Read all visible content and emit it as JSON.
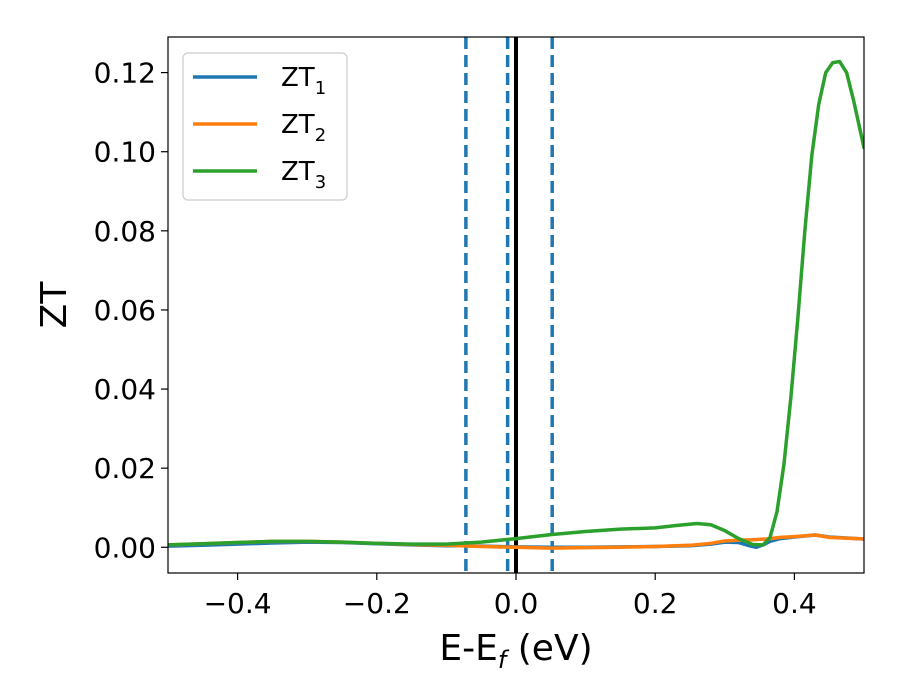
{
  "chart_data": {
    "type": "line",
    "xlabel": "E-E",
    "xlabel_sub": "f",
    "xlabel_unit": " (eV)",
    "ylabel": "ZT",
    "xlim": [
      -0.5,
      0.5
    ],
    "ylim": [
      -0.0065,
      0.129
    ],
    "xticks": [
      -0.4,
      -0.2,
      0.0,
      0.2,
      0.4
    ],
    "xtick_labels": [
      "−0.4",
      "−0.2",
      "0.0",
      "0.2",
      "0.4"
    ],
    "yticks": [
      0.0,
      0.02,
      0.04,
      0.06,
      0.08,
      0.1,
      0.12
    ],
    "ytick_labels": [
      "0.00",
      "0.02",
      "0.04",
      "0.06",
      "0.08",
      "0.10",
      "0.12"
    ],
    "legend_position": "top-left",
    "colors": {
      "ZT1": "#1f77b4",
      "ZT2": "#ff7f0e",
      "ZT3": "#2ca02c",
      "solid_vline": "#000000",
      "dashed_vline": "#1f77b4"
    },
    "vlines": [
      {
        "x": -0.072,
        "style": "dashed"
      },
      {
        "x": -0.012,
        "style": "dashed"
      },
      {
        "x": 0.0,
        "style": "solid"
      },
      {
        "x": 0.052,
        "style": "dashed"
      }
    ],
    "series": [
      {
        "name": "ZT",
        "sub": "1",
        "color": "#1f77b4",
        "x": [
          -0.5,
          -0.45,
          -0.4,
          -0.35,
          -0.3,
          -0.25,
          -0.2,
          -0.15,
          -0.1,
          -0.08,
          -0.05,
          0.0,
          0.05,
          0.1,
          0.15,
          0.2,
          0.25,
          0.28,
          0.3,
          0.32,
          0.335,
          0.345,
          0.355,
          0.365,
          0.38,
          0.4,
          0.43,
          0.45,
          0.5
        ],
        "y": [
          0.0003,
          0.0005,
          0.0008,
          0.0011,
          0.0013,
          0.0012,
          0.0009,
          0.0006,
          0.0004,
          0.0004,
          0.0003,
          0.0001,
          0.0,
          0.0,
          0.0001,
          0.0002,
          0.0004,
          0.0008,
          0.0013,
          0.0012,
          0.0004,
          0.0,
          0.0006,
          0.0015,
          0.0022,
          0.0026,
          0.0031,
          0.0026,
          0.0021
        ]
      },
      {
        "name": "ZT",
        "sub": "2",
        "color": "#ff7f0e",
        "x": [
          -0.5,
          -0.45,
          -0.4,
          -0.35,
          -0.3,
          -0.25,
          -0.2,
          -0.15,
          -0.1,
          -0.08,
          -0.05,
          0.0,
          0.05,
          0.1,
          0.15,
          0.2,
          0.25,
          0.28,
          0.3,
          0.32,
          0.34,
          0.36,
          0.38,
          0.4,
          0.43,
          0.45,
          0.5
        ],
        "y": [
          0.0006,
          0.0009,
          0.0012,
          0.0015,
          0.0015,
          0.0013,
          0.001,
          0.0007,
          0.0005,
          0.0004,
          0.0002,
          0.0,
          -0.0002,
          -0.0001,
          0.0,
          0.0002,
          0.0005,
          0.001,
          0.0016,
          0.0018,
          0.0019,
          0.0021,
          0.0025,
          0.0027,
          0.0031,
          0.0025,
          0.0021
        ]
      },
      {
        "name": "ZT",
        "sub": "3",
        "color": "#2ca02c",
        "x": [
          -0.5,
          -0.45,
          -0.4,
          -0.35,
          -0.3,
          -0.25,
          -0.2,
          -0.15,
          -0.1,
          -0.05,
          0.0,
          0.05,
          0.1,
          0.15,
          0.2,
          0.23,
          0.26,
          0.28,
          0.3,
          0.32,
          0.34,
          0.355,
          0.365,
          0.375,
          0.385,
          0.395,
          0.405,
          0.415,
          0.425,
          0.435,
          0.445,
          0.455,
          0.465,
          0.475,
          0.485,
          0.5
        ],
        "y": [
          0.0006,
          0.0009,
          0.0012,
          0.0015,
          0.0015,
          0.0013,
          0.001,
          0.0008,
          0.0008,
          0.0013,
          0.0022,
          0.0032,
          0.004,
          0.0046,
          0.0049,
          0.0055,
          0.006,
          0.0057,
          0.0042,
          0.0022,
          0.0007,
          0.0006,
          0.0025,
          0.009,
          0.021,
          0.038,
          0.058,
          0.08,
          0.099,
          0.112,
          0.12,
          0.1225,
          0.1228,
          0.12,
          0.113,
          0.101
        ]
      }
    ]
  }
}
